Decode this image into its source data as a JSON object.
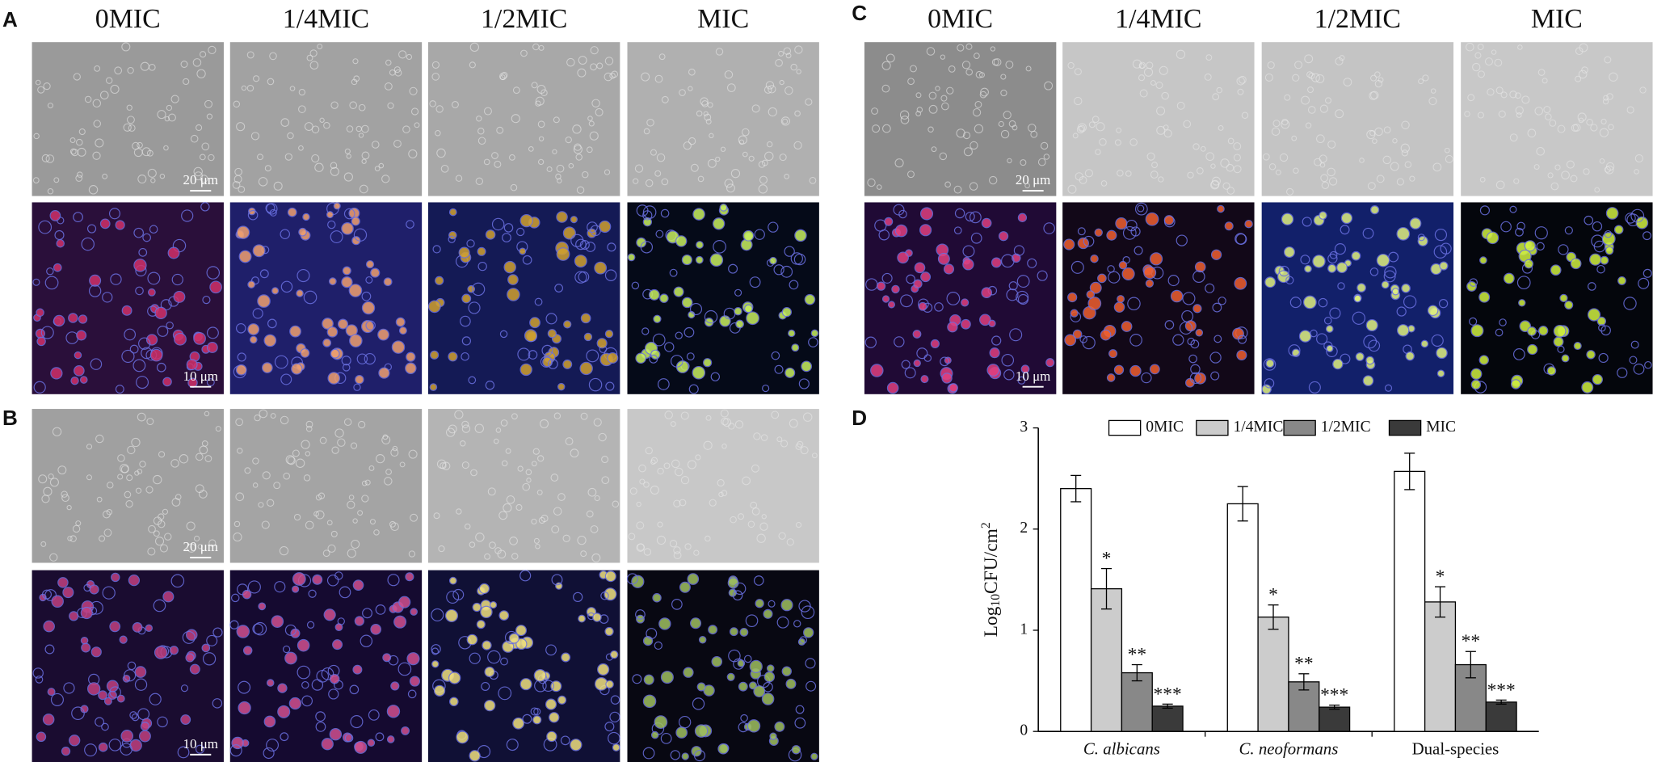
{
  "panel_labels": [
    "A",
    "B",
    "C",
    "D"
  ],
  "columns": [
    "0MIC",
    "1/4MIC",
    "1/2MIC",
    "MIC"
  ],
  "scale_bars": {
    "brightfield": "20 μm",
    "fluorescence": "10 μm"
  },
  "chart_data": {
    "type": "bar",
    "categories": [
      "C. albicans",
      "C. neoformans",
      "Dual-species"
    ],
    "series": [
      {
        "name": "0MIC",
        "color": "#ffffff",
        "values": [
          2.4,
          2.25,
          2.57
        ],
        "errors": [
          0.13,
          0.17,
          0.18
        ]
      },
      {
        "name": "1/4MIC",
        "color": "#cccccc",
        "values": [
          1.41,
          1.13,
          1.28
        ],
        "errors": [
          0.2,
          0.12,
          0.15
        ],
        "annotations": [
          "*",
          "*",
          "*"
        ]
      },
      {
        "name": "1/2MIC",
        "color": "#888888",
        "values": [
          0.58,
          0.49,
          0.66
        ],
        "errors": [
          0.08,
          0.08,
          0.13
        ],
        "annotations": [
          "**",
          "**",
          "**"
        ]
      },
      {
        "name": "MIC",
        "color": "#3a3a3a",
        "values": [
          0.25,
          0.24,
          0.29
        ],
        "errors": [
          0.02,
          0.02,
          0.02
        ],
        "annotations": [
          "***",
          "***",
          "***"
        ]
      }
    ],
    "y_label": [
      "Log",
      "10",
      "CFU/cm",
      "2"
    ],
    "ylim": [
      0,
      3
    ],
    "yticks": [
      0,
      1,
      2,
      3
    ],
    "legend": "top"
  }
}
